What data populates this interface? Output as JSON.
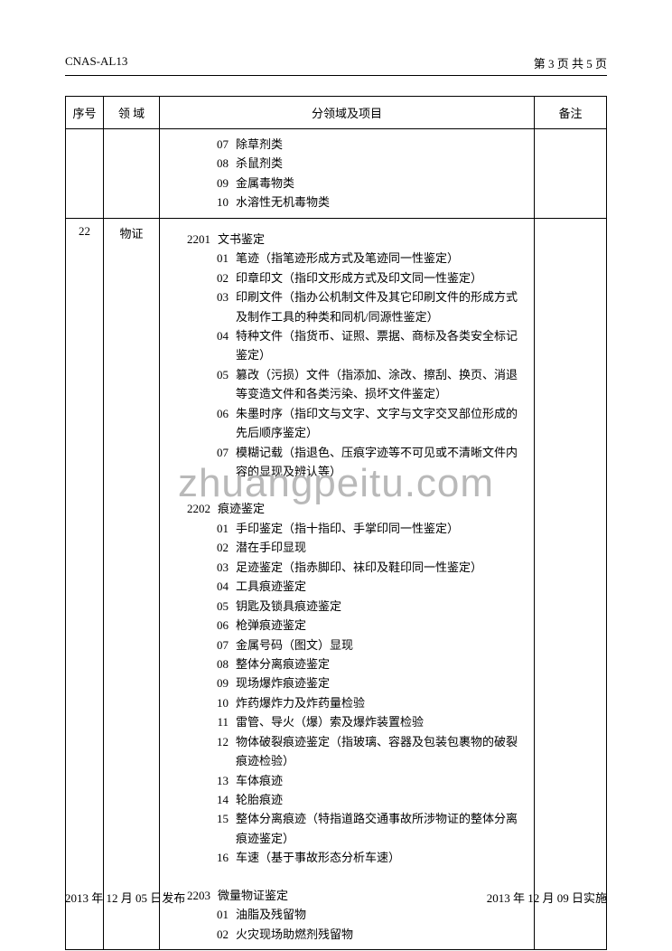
{
  "header": {
    "left": "CNAS-AL13",
    "right": "第 3 页 共 5 页"
  },
  "watermark": "zhuangpeitu.com",
  "table": {
    "headers": {
      "seq": "序号",
      "domain": "领 域",
      "content": "分领域及项目",
      "note": "备注"
    },
    "row1": {
      "items": [
        {
          "code": "07",
          "label": "除草剂类"
        },
        {
          "code": "08",
          "label": "杀鼠剂类"
        },
        {
          "code": "09",
          "label": "金属毒物类"
        },
        {
          "code": "10",
          "label": "水溶性无机毒物类"
        }
      ]
    },
    "row2": {
      "seq": "22",
      "domain": "物证",
      "sections": [
        {
          "code": "2201",
          "title": "文书鉴定",
          "items": [
            {
              "code": "01",
              "label": "笔迹（指笔迹形成方式及笔迹同一性鉴定）"
            },
            {
              "code": "02",
              "label": "印章印文（指印文形成方式及印文同一性鉴定）"
            },
            {
              "code": "03",
              "label": "印刷文件（指办公机制文件及其它印刷文件的形成方式及制作工具的种类和同机/同源性鉴定）"
            },
            {
              "code": "04",
              "label": "特种文件（指货币、证照、票据、商标及各类安全标记鉴定）"
            },
            {
              "code": "05",
              "label": "篡改（污损）文件（指添加、涂改、擦刮、换页、消退等变造文件和各类污染、损坏文件鉴定）"
            },
            {
              "code": "06",
              "label": "朱墨时序（指印文与文字、文字与文字交叉部位形成的先后顺序鉴定）"
            },
            {
              "code": "07",
              "label": "模糊记载（指退色、压痕字迹等不可见或不清晰文件内容的显现及辨认等）"
            }
          ]
        },
        {
          "code": "2202",
          "title": "痕迹鉴定",
          "items": [
            {
              "code": "01",
              "label": "手印鉴定（指十指印、手掌印同一性鉴定）"
            },
            {
              "code": "02",
              "label": "潜在手印显现"
            },
            {
              "code": "03",
              "label": "足迹鉴定（指赤脚印、袜印及鞋印同一性鉴定）"
            },
            {
              "code": "04",
              "label": "工具痕迹鉴定"
            },
            {
              "code": "05",
              "label": "钥匙及锁具痕迹鉴定"
            },
            {
              "code": "06",
              "label": "枪弹痕迹鉴定"
            },
            {
              "code": "07",
              "label": "金属号码（图文）显现"
            },
            {
              "code": "08",
              "label": "整体分离痕迹鉴定"
            },
            {
              "code": "09",
              "label": "现场爆炸痕迹鉴定"
            },
            {
              "code": "10",
              "label": "炸药爆炸力及炸药量检验"
            },
            {
              "code": "11",
              "label": "雷管、导火（爆）索及爆炸装置检验"
            },
            {
              "code": "12",
              "label": "物体破裂痕迹鉴定（指玻璃、容器及包装包裹物的破裂痕迹检验）"
            },
            {
              "code": "13",
              "label": "车体痕迹"
            },
            {
              "code": "14",
              "label": "轮胎痕迹"
            },
            {
              "code": "15",
              "label": "整体分离痕迹（特指道路交通事故所涉物证的整体分离痕迹鉴定）"
            },
            {
              "code": "16",
              "label": "车速（基于事故形态分析车速）"
            }
          ]
        },
        {
          "code": "2203",
          "title": "微量物证鉴定",
          "items": [
            {
              "code": "01",
              "label": "油脂及残留物"
            },
            {
              "code": "02",
              "label": "火灾现场助燃剂残留物"
            }
          ]
        }
      ]
    }
  },
  "footer": {
    "left": "2013 年 12 月 05 日发布",
    "right": "2013 年 12 月 09 日实施"
  }
}
